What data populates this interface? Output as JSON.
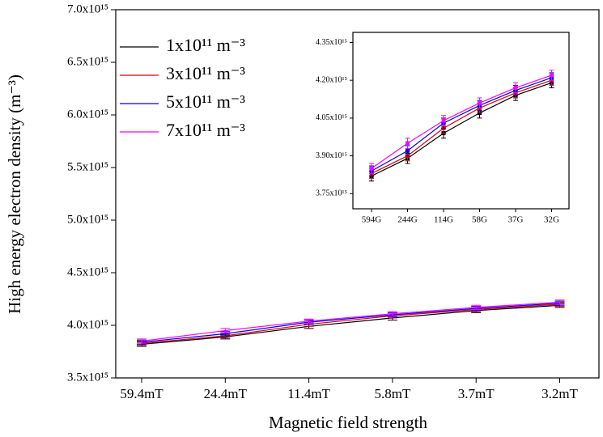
{
  "chart_data": [
    {
      "type": "line",
      "x_label": "Magnetic field strength",
      "y_label": "High energy electron density (m⁻³)",
      "categories": [
        "59.4mT",
        "24.4mT",
        "11.4mT",
        "5.8mT",
        "3.7mT",
        "3.2mT"
      ],
      "ylim": [
        3500000000000000.0,
        7000000000000000.0
      ],
      "yticks": [
        {
          "value": 3500000000000000.0,
          "label": "3.5x10¹⁵"
        },
        {
          "value": 4000000000000000.0,
          "label": "4.0x10¹⁵"
        },
        {
          "value": 4500000000000000.0,
          "label": "4.5x10¹⁵"
        },
        {
          "value": 5000000000000000.0,
          "label": "5.0x10¹⁵"
        },
        {
          "value": 5500000000000000.0,
          "label": "5.5x10¹⁵"
        },
        {
          "value": 6000000000000000.0,
          "label": "6.0x10¹⁵"
        },
        {
          "value": 6500000000000000.0,
          "label": "6.5x10¹⁵"
        },
        {
          "value": 7000000000000000.0,
          "label": "7.0x10¹⁵"
        }
      ],
      "legend": "upper left",
      "series": [
        {
          "name": "1x10¹¹ m⁻³",
          "color": "#000000",
          "values": [
            3820000000000000.0,
            3890000000000000.0,
            3990000000000000.0,
            4070000000000000.0,
            4140000000000000.0,
            4190000000000000.0
          ],
          "errors": [
            20000000000000.0,
            20000000000000.0,
            20000000000000.0,
            20000000000000.0,
            20000000000000.0,
            20000000000000.0
          ]
        },
        {
          "name": "3x10¹¹ m⁻³",
          "color": "#e00000",
          "values": [
            3830000000000000.0,
            3900000000000000.0,
            4010000000000000.0,
            4090000000000000.0,
            4150000000000000.0,
            4200000000000000.0
          ],
          "errors": [
            20000000000000.0,
            20000000000000.0,
            20000000000000.0,
            20000000000000.0,
            20000000000000.0,
            20000000000000.0
          ]
        },
        {
          "name": "5x10¹¹ m⁻³",
          "color": "#0000ee",
          "values": [
            3840000000000000.0,
            3920000000000000.0,
            4030000000000000.0,
            4100000000000000.0,
            4160000000000000.0,
            4210000000000000.0
          ],
          "errors": [
            20000000000000.0,
            20000000000000.0,
            20000000000000.0,
            20000000000000.0,
            20000000000000.0,
            20000000000000.0
          ]
        },
        {
          "name": "7x10¹¹ m⁻³",
          "color": "#ff00ff",
          "values": [
            3850000000000000.0,
            3950000000000000.0,
            4040000000000000.0,
            4110000000000000.0,
            4170000000000000.0,
            4220000000000000.0
          ],
          "errors": [
            20000000000000.0,
            20000000000000.0,
            20000000000000.0,
            20000000000000.0,
            20000000000000.0,
            20000000000000.0
          ]
        }
      ]
    },
    {
      "type": "line",
      "categories": [
        "594G",
        "244G",
        "114G",
        "58G",
        "37G",
        "32G"
      ],
      "ylim": [
        3690000000000000.0,
        4390000000000000.0
      ],
      "yticks": [
        {
          "value": 3750000000000000.0,
          "label": "3.75x10¹⁵"
        },
        {
          "value": 3900000000000000.0,
          "label": "3.90x10¹⁵"
        },
        {
          "value": 4050000000000000.0,
          "label": "4.05x10¹⁵"
        },
        {
          "value": 4200000000000000.0,
          "label": "4.20x10¹⁵"
        },
        {
          "value": 4350000000000000.0,
          "label": "4.35x10¹⁵"
        }
      ],
      "series": [
        {
          "color": "#000000",
          "values": [
            3820000000000000.0,
            3890000000000000.0,
            3990000000000000.0,
            4070000000000000.0,
            4140000000000000.0,
            4190000000000000.0
          ],
          "errors": [
            20000000000000.0,
            20000000000000.0,
            20000000000000.0,
            20000000000000.0,
            20000000000000.0,
            20000000000000.0
          ]
        },
        {
          "color": "#e00000",
          "values": [
            3830000000000000.0,
            3900000000000000.0,
            4010000000000000.0,
            4090000000000000.0,
            4150000000000000.0,
            4200000000000000.0
          ],
          "errors": [
            20000000000000.0,
            20000000000000.0,
            20000000000000.0,
            20000000000000.0,
            20000000000000.0,
            20000000000000.0
          ]
        },
        {
          "color": "#0000ee",
          "values": [
            3840000000000000.0,
            3920000000000000.0,
            4030000000000000.0,
            4100000000000000.0,
            4160000000000000.0,
            4210000000000000.0
          ],
          "errors": [
            20000000000000.0,
            20000000000000.0,
            20000000000000.0,
            20000000000000.0,
            20000000000000.0,
            20000000000000.0
          ]
        },
        {
          "color": "#ff00ff",
          "values": [
            3850000000000000.0,
            3950000000000000.0,
            4040000000000000.0,
            4110000000000000.0,
            4170000000000000.0,
            4220000000000000.0
          ],
          "errors": [
            20000000000000.0,
            20000000000000.0,
            20000000000000.0,
            20000000000000.0,
            20000000000000.0,
            20000000000000.0
          ]
        }
      ]
    }
  ]
}
